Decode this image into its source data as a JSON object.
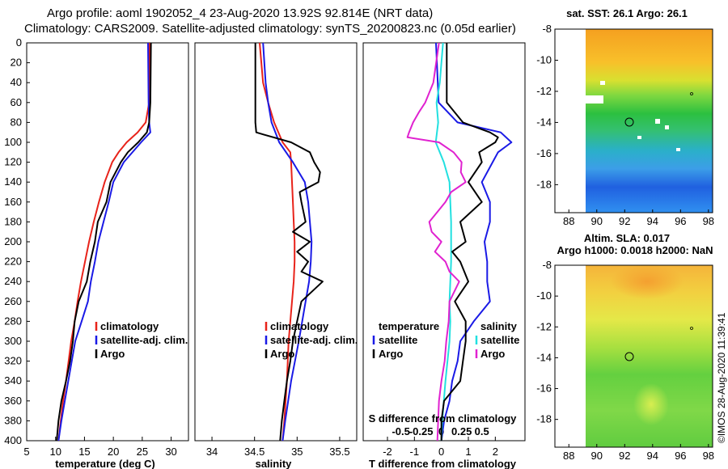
{
  "figure": {
    "title_line1": "Argo profile: aoml 1902052_4 23-Aug-2020 13.92S 92.814E (NRT data)",
    "title_line2": "Climatology: CARS2009. Satellite-adjusted climatology: synTS_20200823.nc (0.05d earlier)",
    "credit": "©IMOS 28-Aug-2020 11:39:41"
  },
  "colors": {
    "climatology": "#e8231a",
    "satellite": "#1a1ae6",
    "argo": "#000000",
    "temperature_diff": "#22e0e0",
    "salinity_diff": "#e022d0"
  },
  "chart_data": [
    {
      "type": "line",
      "panel": "temperature",
      "xlabel": "temperature (deg C)",
      "xlim": [
        5,
        33
      ],
      "xticks": [
        5,
        10,
        15,
        20,
        25,
        30
      ],
      "ylim": [
        0,
        400
      ],
      "yticks": [
        0,
        20,
        40,
        60,
        80,
        100,
        120,
        140,
        160,
        180,
        200,
        220,
        240,
        260,
        280,
        300,
        320,
        340,
        360,
        380,
        400
      ],
      "legend": [
        "climatology",
        "satellite-adj. clim.",
        "Argo"
      ],
      "series": [
        {
          "name": "climatology",
          "color": "#e8231a",
          "depth": [
            0,
            60,
            80,
            90,
            100,
            110,
            120,
            140,
            160,
            180,
            200,
            220,
            240,
            260,
            280,
            300,
            340,
            360,
            380,
            400
          ],
          "values": [
            26.3,
            26.2,
            25.6,
            24.2,
            22.3,
            20.9,
            19.8,
            18.5,
            17.5,
            16.6,
            15.8,
            15.1,
            14.4,
            13.8,
            13.3,
            12.7,
            11.8,
            11.3,
            10.9,
            10.5
          ]
        },
        {
          "name": "satellite-adj. clim.",
          "color": "#1a1ae6",
          "depth": [
            0,
            60,
            80,
            90,
            100,
            120,
            140,
            160,
            180,
            200,
            220,
            240,
            260,
            280,
            300,
            340,
            360,
            380,
            400
          ],
          "values": [
            26.0,
            26.1,
            26.2,
            26.4,
            24.8,
            21.8,
            20.0,
            19.2,
            18.3,
            17.4,
            16.8,
            16.1,
            15.6,
            14.5,
            13.4,
            12.2,
            11.6,
            11.0,
            10.5
          ]
        },
        {
          "name": "Argo",
          "color": "#000000",
          "depth": [
            0,
            60,
            80,
            90,
            100,
            110,
            120,
            140,
            160,
            180,
            200,
            220,
            240,
            260,
            280,
            300,
            320,
            340,
            360,
            380,
            400
          ],
          "values": [
            26.5,
            26.4,
            26.2,
            25.8,
            24.3,
            22.5,
            21.3,
            19.5,
            18.8,
            17.3,
            16.8,
            16.0,
            15.4,
            14.0,
            13.3,
            13.0,
            12.5,
            11.8,
            11.0,
            10.5,
            10.2
          ]
        }
      ]
    },
    {
      "type": "line",
      "panel": "salinity",
      "xlabel": "salinity",
      "xlim": [
        33.8,
        35.7
      ],
      "xticks": [
        34,
        34.5,
        35,
        35.5
      ],
      "ylim": [
        0,
        400
      ],
      "legend": [
        "climatology",
        "satellite-adj. clim.",
        "Argo"
      ],
      "series": [
        {
          "name": "climatology",
          "color": "#e8231a",
          "depth": [
            0,
            40,
            60,
            80,
            100,
            110,
            120,
            140,
            160,
            180,
            200,
            220,
            240,
            260,
            280,
            300,
            340,
            380,
            400
          ],
          "values": [
            34.56,
            34.6,
            34.66,
            34.73,
            34.83,
            34.92,
            34.93,
            34.94,
            34.95,
            34.96,
            34.97,
            34.97,
            34.96,
            34.94,
            34.92,
            34.9,
            34.88,
            34.85,
            34.83
          ]
        },
        {
          "name": "satellite-adj. clim.",
          "color": "#1a1ae6",
          "depth": [
            0,
            40,
            60,
            80,
            100,
            120,
            140,
            160,
            180,
            200,
            220,
            240,
            260,
            280,
            300,
            340,
            380,
            400
          ],
          "values": [
            34.6,
            34.63,
            34.66,
            34.7,
            34.79,
            34.95,
            35.09,
            35.13,
            35.15,
            35.17,
            35.16,
            35.14,
            35.1,
            35.06,
            35.02,
            34.93,
            34.86,
            34.83
          ]
        },
        {
          "name": "Argo",
          "color": "#000000",
          "depth": [
            0,
            40,
            60,
            80,
            90,
            92,
            100,
            110,
            120,
            130,
            140,
            150,
            160,
            180,
            190,
            200,
            210,
            220,
            230,
            240,
            260,
            280,
            300,
            320,
            340,
            360,
            380,
            400
          ],
          "values": [
            34.51,
            34.51,
            34.51,
            34.51,
            34.52,
            34.6,
            34.93,
            35.15,
            35.2,
            35.27,
            35.25,
            35.03,
            35.05,
            35.1,
            34.95,
            35.15,
            35.0,
            35.13,
            35.05,
            35.3,
            35.05,
            35.0,
            34.95,
            34.92,
            34.88,
            34.85,
            34.82,
            34.8
          ]
        }
      ]
    },
    {
      "type": "line",
      "panel": "difference",
      "xlabel": "T difference from climatology",
      "xlabel_top": "S difference from climatology",
      "xlim": [
        -2.9,
        3.1
      ],
      "xticks": [
        -2,
        -1,
        0,
        1,
        2
      ],
      "xticks_top": [
        -0.5,
        -0.25,
        0,
        0.25,
        0.5
      ],
      "ylim": [
        0,
        400
      ],
      "legend": {
        "temperature": "temperature",
        "salinity": "salinity",
        "satellite": "satellite",
        "argo": "Argo"
      },
      "series": [
        {
          "name": "T satellite",
          "color": "#1a1ae6",
          "depth": [
            0,
            60,
            80,
            90,
            100,
            110,
            120,
            140,
            160,
            180,
            200,
            220,
            240,
            260,
            280,
            300,
            320,
            340,
            360,
            380,
            400
          ],
          "values": [
            -0.2,
            -0.1,
            0.6,
            2.2,
            2.6,
            2.1,
            1.9,
            1.5,
            1.8,
            1.8,
            1.6,
            1.7,
            1.7,
            1.8,
            1.2,
            0.7,
            0.6,
            0.4,
            0.3,
            0.1,
            0.0
          ]
        },
        {
          "name": "S satellite",
          "color": "#22e0e0",
          "depth": [
            0,
            40,
            60,
            80,
            100,
            120,
            140,
            160,
            180,
            200,
            220,
            240,
            260,
            280,
            300,
            340,
            380,
            400
          ],
          "values": [
            0.02,
            -0.02,
            -0.06,
            -0.04,
            -0.07,
            0.03,
            0.1,
            0.11,
            0.12,
            0.12,
            0.12,
            0.11,
            0.1,
            0.11,
            0.1,
            0.05,
            0.01,
            0.0
          ]
        },
        {
          "name": "T Argo",
          "color": "#000000",
          "depth": [
            0,
            60,
            80,
            90,
            95,
            100,
            110,
            120,
            140,
            160,
            180,
            200,
            210,
            220,
            240,
            260,
            280,
            300,
            320,
            340,
            360,
            380,
            400
          ],
          "values": [
            0.2,
            0.2,
            0.8,
            1.8,
            2.1,
            2.0,
            1.4,
            1.5,
            1.0,
            1.5,
            0.7,
            0.9,
            0.4,
            0.7,
            1.0,
            0.5,
            0.9,
            0.9,
            0.8,
            0.7,
            0.1,
            0.0,
            0.0
          ]
        },
        {
          "name": "S Argo",
          "color": "#e022d0",
          "depth": [
            0,
            40,
            60,
            70,
            80,
            90,
            95,
            100,
            110,
            120,
            130,
            140,
            150,
            160,
            170,
            180,
            190,
            200,
            210,
            220,
            230,
            240,
            260,
            280,
            300,
            320,
            340,
            360,
            380,
            400
          ],
          "values": [
            -0.03,
            -0.1,
            -0.2,
            -0.28,
            -0.35,
            -0.4,
            -0.42,
            -0.03,
            0.15,
            0.25,
            0.24,
            0.3,
            0.12,
            0.05,
            -0.05,
            -0.15,
            -0.12,
            0.0,
            -0.08,
            0.05,
            0.1,
            0.22,
            0.1,
            0.09,
            0.06,
            0.04,
            0.0,
            -0.03,
            -0.04,
            -0.05
          ]
        }
      ]
    },
    {
      "type": "heatmap",
      "panel": "map-sst",
      "title": "sat. SST: 26.1 Argo: 26.1",
      "xlim": [
        87,
        98.3
      ],
      "ylim": [
        -19.8,
        -8
      ],
      "xticks": [
        88,
        90,
        92,
        94,
        96,
        98
      ],
      "yticks": [
        -8,
        -10,
        -12,
        -14,
        -16,
        -18
      ],
      "marker": {
        "lon": 92.814,
        "lat": -13.92
      }
    },
    {
      "type": "heatmap",
      "panel": "map-sla",
      "title_line1": "Altim. SLA: 0.017",
      "title_line2": "Argo h1000: 0.0018 h2000: NaN",
      "xlim": [
        87,
        98.3
      ],
      "ylim": [
        -19.8,
        -8
      ],
      "xticks": [
        88,
        90,
        92,
        94,
        96,
        98
      ],
      "yticks": [
        -8,
        -10,
        -12,
        -14,
        -16,
        -18
      ],
      "marker": {
        "lon": 92.814,
        "lat": -13.92
      }
    }
  ]
}
